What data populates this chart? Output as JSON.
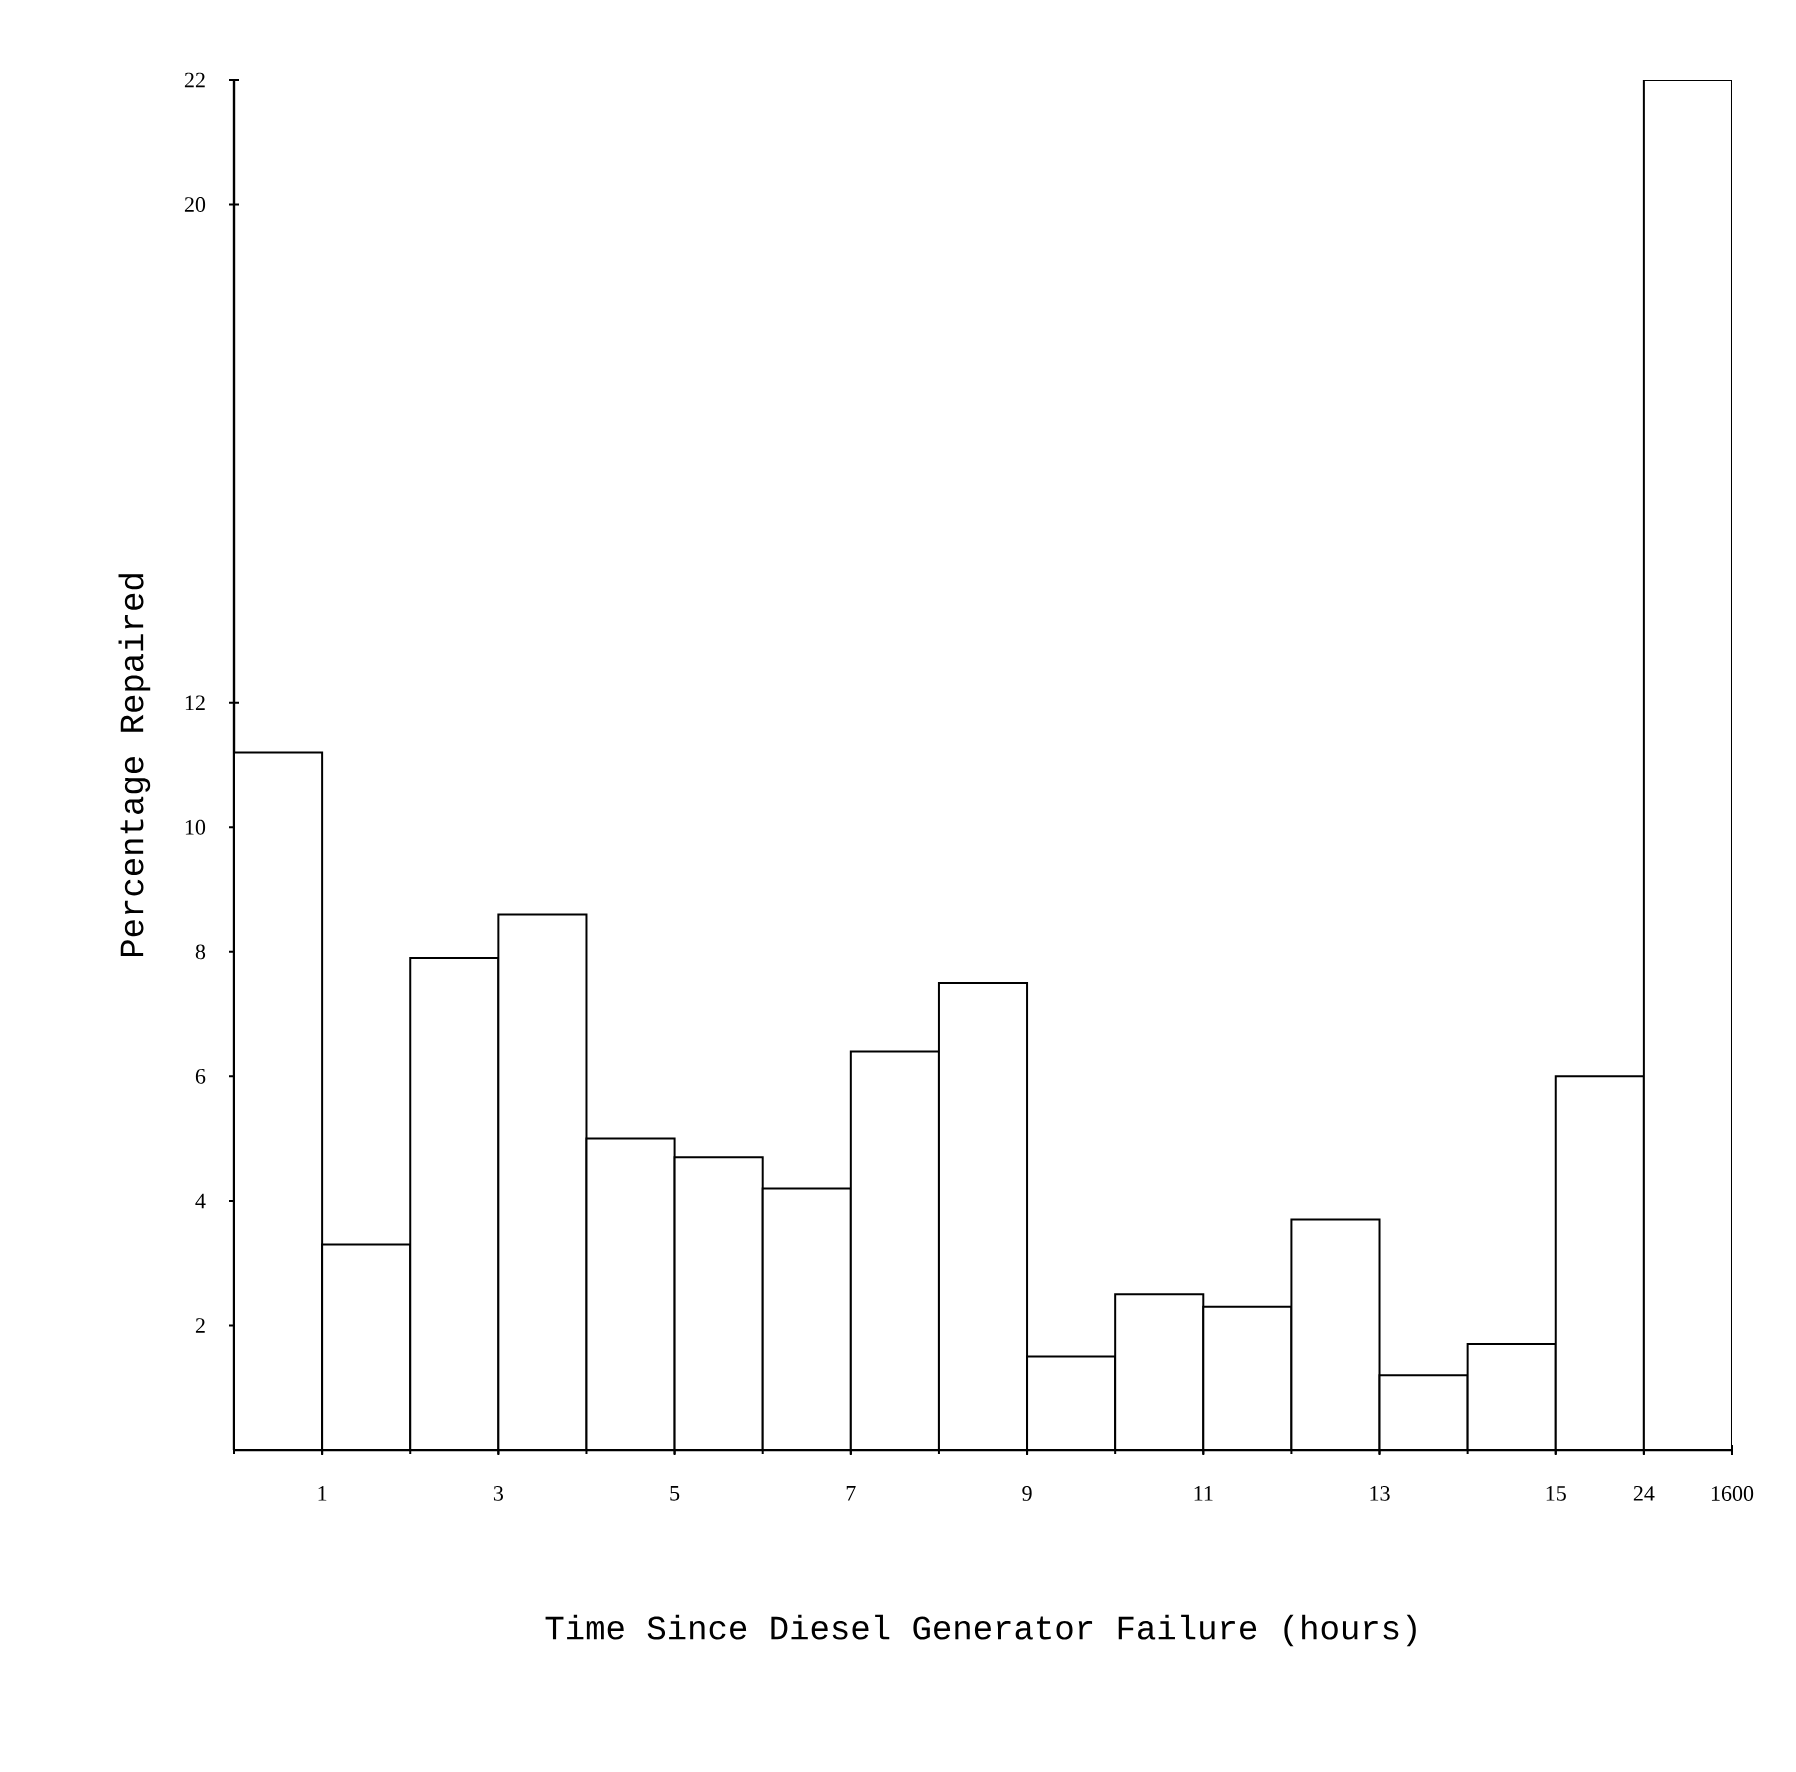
{
  "chart_data": {
    "type": "bar",
    "xlabel": "Time Since Diesel Generator Failure (hours)",
    "ylabel": "Percentage Repaired",
    "categories": [
      "1",
      null,
      "3",
      null,
      "5",
      null,
      "7",
      null,
      "9",
      null,
      "11",
      null,
      "13",
      null,
      "15",
      "24",
      "1600"
    ],
    "values": [
      11.2,
      3.3,
      7.9,
      8.6,
      5.0,
      4.7,
      4.2,
      6.4,
      7.5,
      1.5,
      2.5,
      2.3,
      3.7,
      1.2,
      1.7,
      6.0,
      22.0
    ],
    "color": "#ffffff",
    "ylim": [
      0,
      22
    ],
    "yticks": [
      2,
      4,
      6,
      8,
      10,
      12,
      20,
      22
    ]
  }
}
